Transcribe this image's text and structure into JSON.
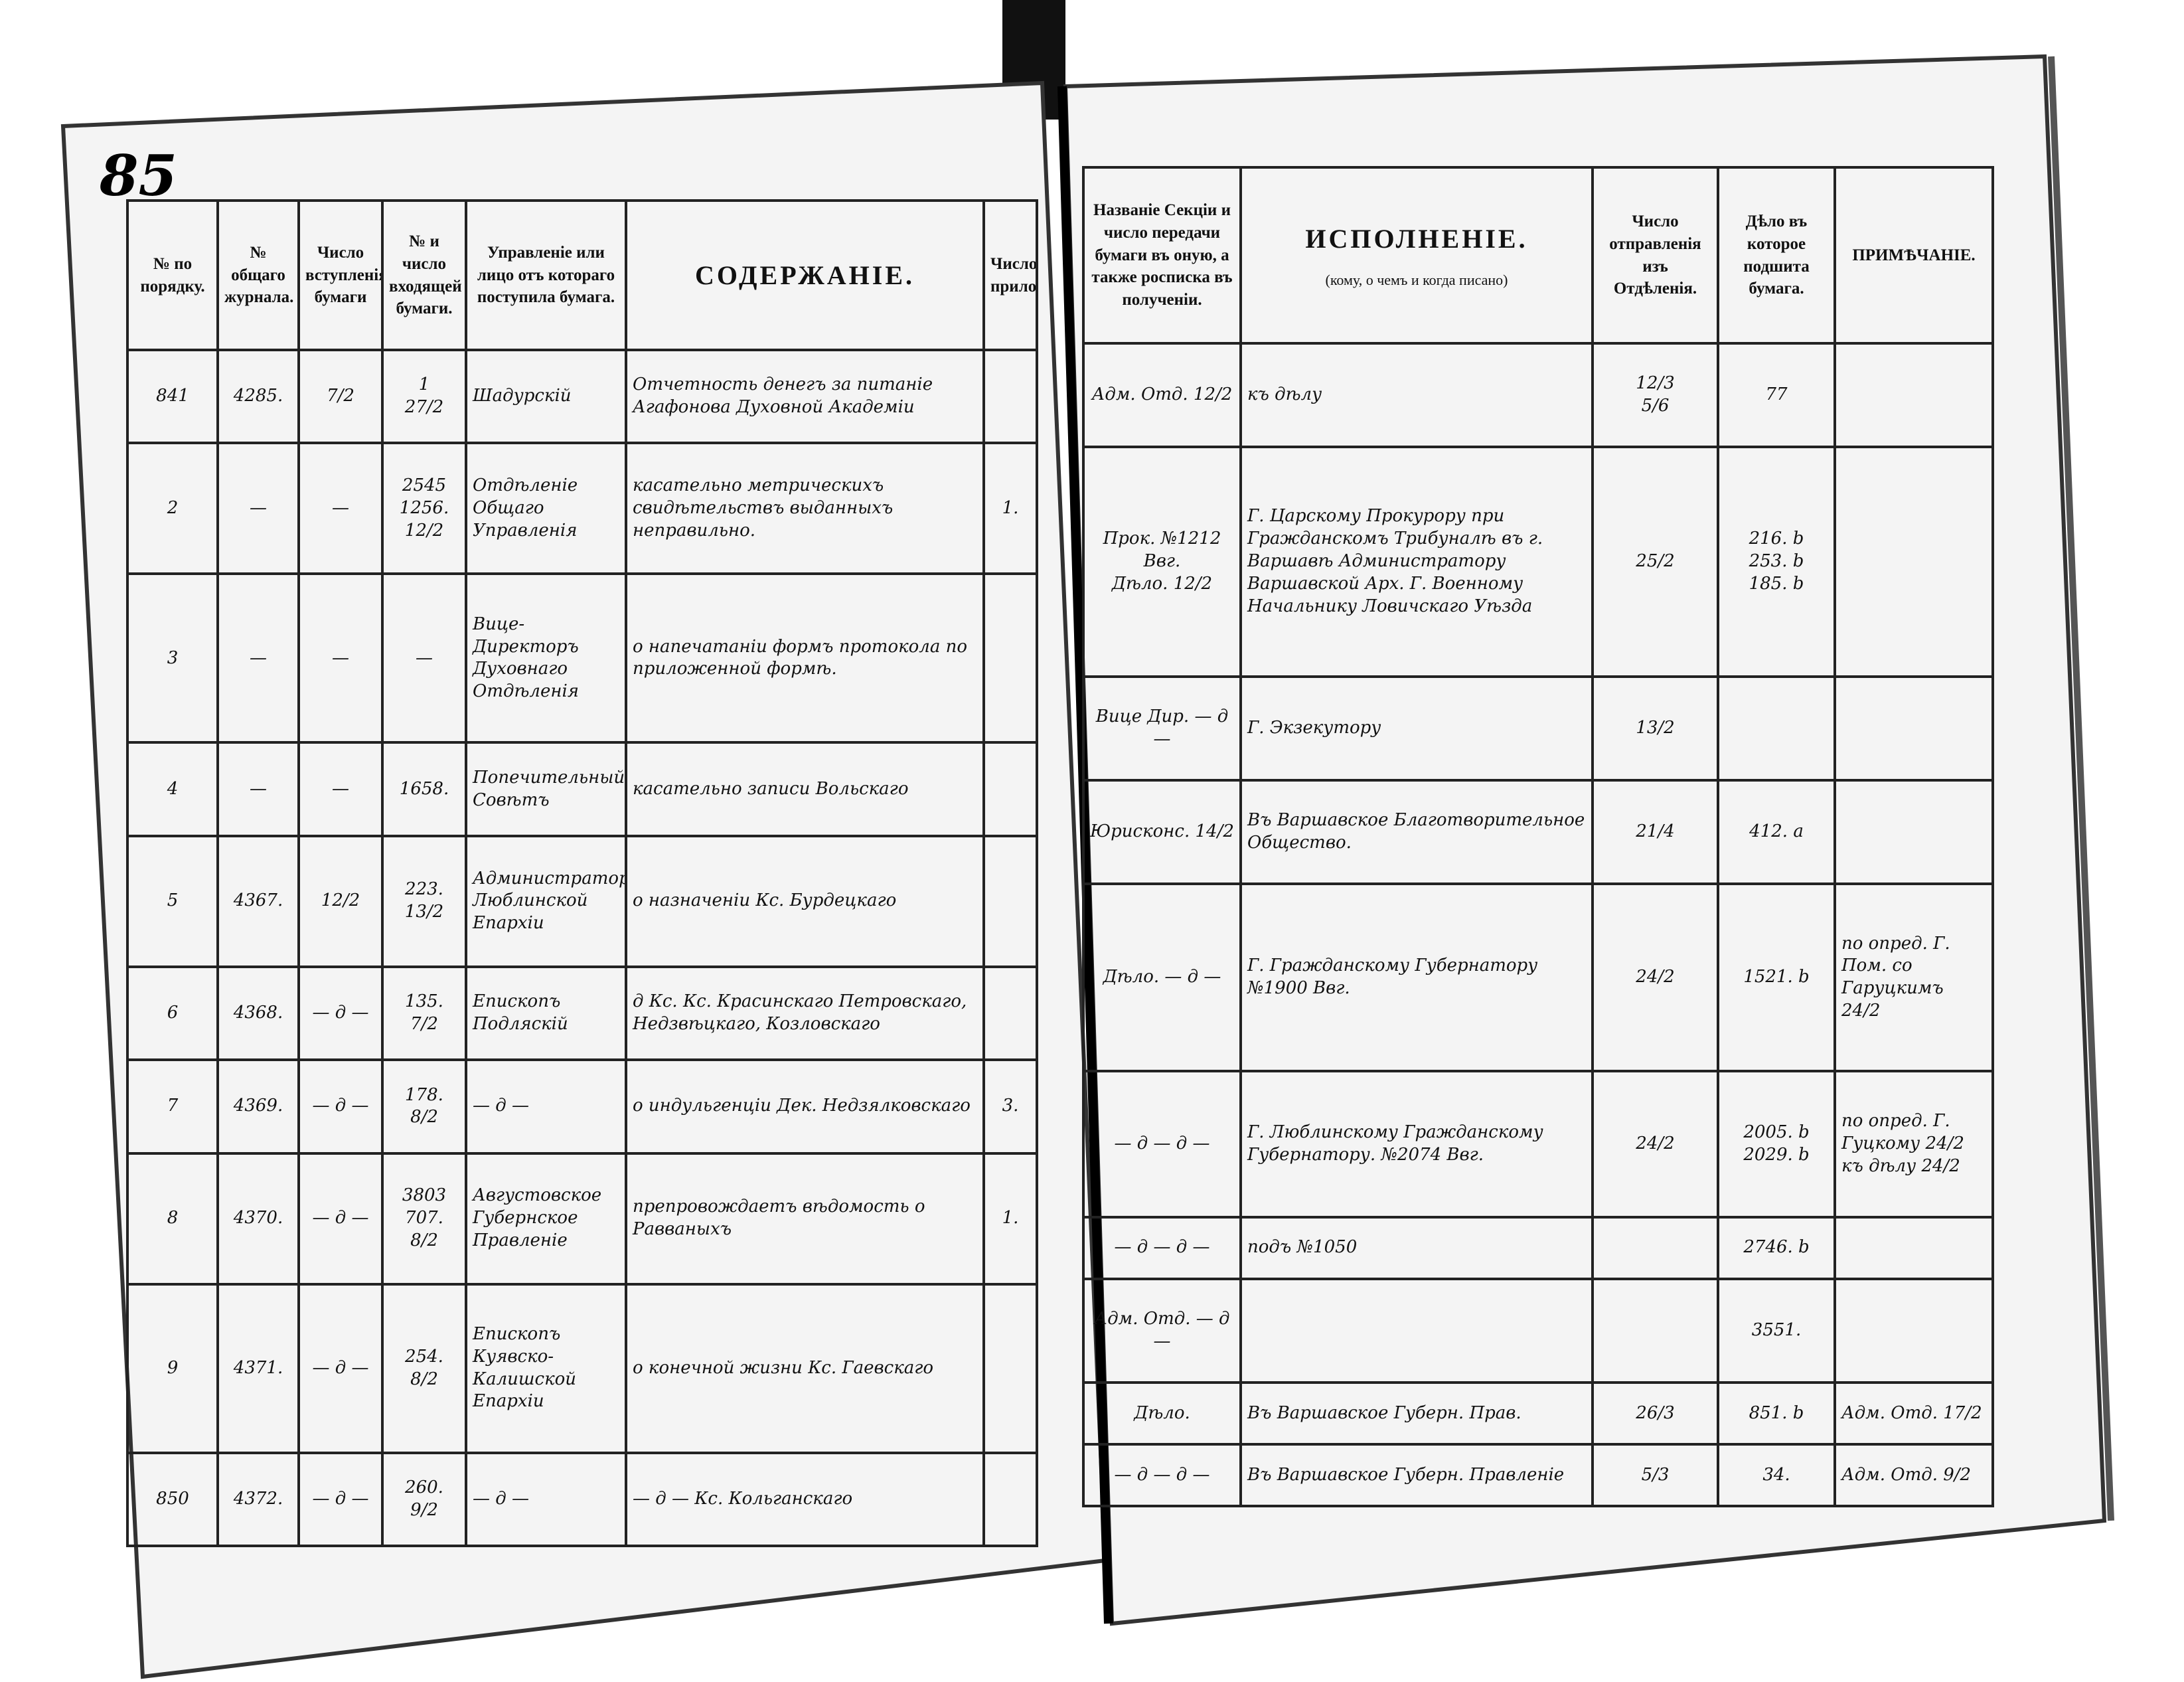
{
  "page_number": "85",
  "left": {
    "headers": [
      "№ по порядку.",
      "№ общаго журнала.",
      "Число вступленія бумаги",
      "№ и число входящей бумаги.",
      "Управленіе или лицо отъ котораго поступила бумага.",
      "СОДЕРЖАНІЕ.",
      "Число приложеній."
    ],
    "rows": [
      [
        "841",
        "4285.",
        "7/2",
        "1\n27/2",
        "Шадурскій",
        "Отчетность денегъ за питаніе Агафонова Духовной Академіи",
        ""
      ],
      [
        "2",
        "—",
        "—",
        "2545\n1256.\n12/2",
        "Отдѣленіе Общаго Управленія",
        "касательно метрическихъ свидѣтельствъ выданныхъ неправильно.",
        "1."
      ],
      [
        "3",
        "—",
        "—",
        "—",
        "Вице-Директоръ Духовнаго Отдѣленія",
        "о напечатаніи формъ протокола по приложенной формѣ.",
        ""
      ],
      [
        "4",
        "—",
        "—",
        "1658.",
        "Попечительный Совѣтъ",
        "касательно записи Вольскаго",
        ""
      ],
      [
        "5",
        "4367.",
        "12/2",
        "223.\n13/2",
        "Администраторъ Люблинской Епархіи",
        "о назначеніи Кс. Бурдецкаго",
        ""
      ],
      [
        "6",
        "4368.",
        "— д —",
        "135.\n7/2",
        "Епископъ Подляскій",
        "д Кс. Кс. Красинскаго Петровскаго, Недзвѣцкаго, Козловскаго",
        ""
      ],
      [
        "7",
        "4369.",
        "— д —",
        "178.\n8/2",
        "— д —",
        "о индульгенціи Дек. Недзялковскаго",
        "3."
      ],
      [
        "8",
        "4370.",
        "— д —",
        "3803\n707.\n8/2",
        "Августовское Губернское Правленіе",
        "препровождаетъ вѣдомость о Равваныхъ",
        "1."
      ],
      [
        "9",
        "4371.",
        "— д —",
        "254.\n8/2",
        "Епископъ Куявско-Калишской Епархіи",
        "о конечной жизни Кс. Гаевскаго",
        ""
      ],
      [
        "850",
        "4372.",
        "— д —",
        "260.\n9/2",
        "— д —",
        "— д —   Кс. Кольганскаго",
        ""
      ]
    ]
  },
  "right": {
    "headers": [
      "Названіе Секціи и число передачи бумаги въ оную, а также росписка въ полученіи.",
      "ИСПОЛНЕНІЕ.",
      "Число отправленія изъ Отдѣленія.",
      "Дѣло въ которое подшита бумага.",
      "ПРИМѢЧАНІЕ."
    ],
    "header_note": "(кому, о чемъ и когда писано)",
    "rows": [
      [
        "Адм. Отд. 12/2",
        "къ дѣлу",
        "12/3\n5/6",
        "77",
        ""
      ],
      [
        "Прок. №1212 Ввг.\nДѣло. 12/2",
        "Г. Царскому Прокурору при Гражданскомъ Трибуналѣ въ г. Варшавѣ Администратору Варшавской Арх. Г. Военному Начальнику Ловичскаго Уѣзда",
        "25/2",
        "216. b\n253. b\n185. b",
        ""
      ],
      [
        "Вице Дир. — д —",
        "Г. Экзекутору",
        "13/2",
        "",
        ""
      ],
      [
        "Юрисконс. 14/2",
        "Въ Варшавское Благотворительное Общество.",
        "21/4",
        "412. a",
        ""
      ],
      [
        "Дѣло. — д —",
        "Г. Гражданскому Губернатору №1900 Ввг.",
        "24/2",
        "1521. b",
        "по опред. Г. Пом. со Гаруцкимъ 24/2"
      ],
      [
        "— д — д —",
        "Г. Люблинскому Гражданскому Губернатору. №2074 Ввг.",
        "24/2",
        "2005. b\n2029. b",
        "по опред. Г. Гуцкому 24/2 къ дѣлу 24/2"
      ],
      [
        "— д — д —",
        "подъ №1050",
        "",
        "2746. b",
        ""
      ],
      [
        "Адм. Отд. — д —",
        "",
        "",
        "3551.",
        ""
      ],
      [
        "Дѣло.",
        "Въ Варшавское Губерн. Прав.",
        "26/3",
        "851. b",
        "Адм. Отд. 17/2"
      ],
      [
        "— д — д —",
        "Въ Варшавское Губерн. Правленіе",
        "5/3",
        "34.",
        "Адм. Отд. 9/2"
      ]
    ]
  }
}
